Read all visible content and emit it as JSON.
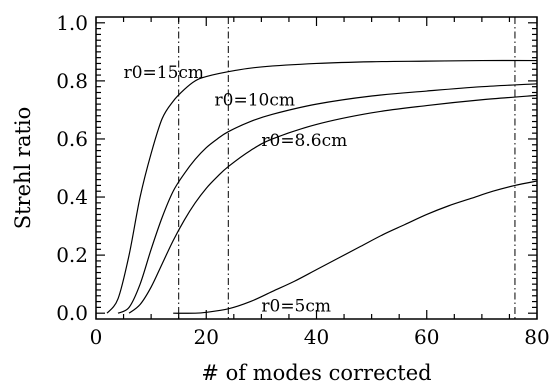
{
  "chart_data": {
    "type": "line",
    "title": "",
    "xlabel": "# of modes corrected",
    "ylabel": "Strehl ratio",
    "xlim": [
      0,
      80
    ],
    "ylim": [
      -0.02,
      1.02
    ],
    "xticks": [
      0,
      20,
      40,
      60,
      80
    ],
    "xtick_labels": [
      "0",
      "20",
      "40",
      "60",
      "80"
    ],
    "yticks": [
      0.0,
      0.2,
      0.4,
      0.6,
      0.8,
      1.0
    ],
    "ytick_labels": [
      "0.0",
      "0.2",
      "0.4",
      "0.6",
      "0.8",
      "1.0"
    ],
    "grid": false,
    "vertical_lines": [
      15,
      24,
      76
    ],
    "series": [
      {
        "name": "r0=15cm",
        "x": [
          2,
          4,
          6,
          8,
          10,
          12,
          14,
          16,
          18,
          20,
          25,
          30,
          40,
          50,
          60,
          70,
          80
        ],
        "y": [
          0.0,
          0.05,
          0.2,
          0.4,
          0.55,
          0.67,
          0.73,
          0.77,
          0.8,
          0.815,
          0.835,
          0.848,
          0.86,
          0.866,
          0.868,
          0.87,
          0.87
        ]
      },
      {
        "name": "r0=10cm",
        "x": [
          4,
          6,
          8,
          10,
          12,
          14,
          16,
          18,
          20,
          22,
          24,
          28,
          32,
          40,
          50,
          60,
          70,
          80
        ],
        "y": [
          0.0,
          0.02,
          0.1,
          0.22,
          0.33,
          0.42,
          0.48,
          0.53,
          0.57,
          0.6,
          0.625,
          0.66,
          0.685,
          0.72,
          0.748,
          0.765,
          0.78,
          0.79
        ]
      },
      {
        "name": "r0=8.6cm",
        "x": [
          6,
          8,
          10,
          12,
          14,
          16,
          18,
          20,
          22,
          24,
          28,
          32,
          40,
          50,
          60,
          70,
          80
        ],
        "y": [
          0.0,
          0.03,
          0.09,
          0.17,
          0.25,
          0.32,
          0.38,
          0.43,
          0.47,
          0.505,
          0.56,
          0.6,
          0.65,
          0.69,
          0.715,
          0.735,
          0.75
        ]
      },
      {
        "name": "r0=5cm",
        "x": [
          14,
          18,
          20,
          24,
          28,
          32,
          36,
          40,
          44,
          48,
          52,
          56,
          60,
          64,
          68,
          72,
          76,
          80
        ],
        "y": [
          0.0,
          0.0,
          0.003,
          0.015,
          0.04,
          0.075,
          0.11,
          0.15,
          0.19,
          0.23,
          0.27,
          0.305,
          0.34,
          0.37,
          0.395,
          0.42,
          0.44,
          0.455
        ]
      }
    ],
    "annotations": [
      {
        "text": "r0=15cm",
        "x": 5,
        "y": 0.81
      },
      {
        "text": "r0=10cm",
        "x": 21.5,
        "y": 0.715
      },
      {
        "text": "r0=8.6cm",
        "x": 30,
        "y": 0.575
      },
      {
        "text": "r0=5cm",
        "x": 30,
        "y": 0.005
      }
    ]
  }
}
